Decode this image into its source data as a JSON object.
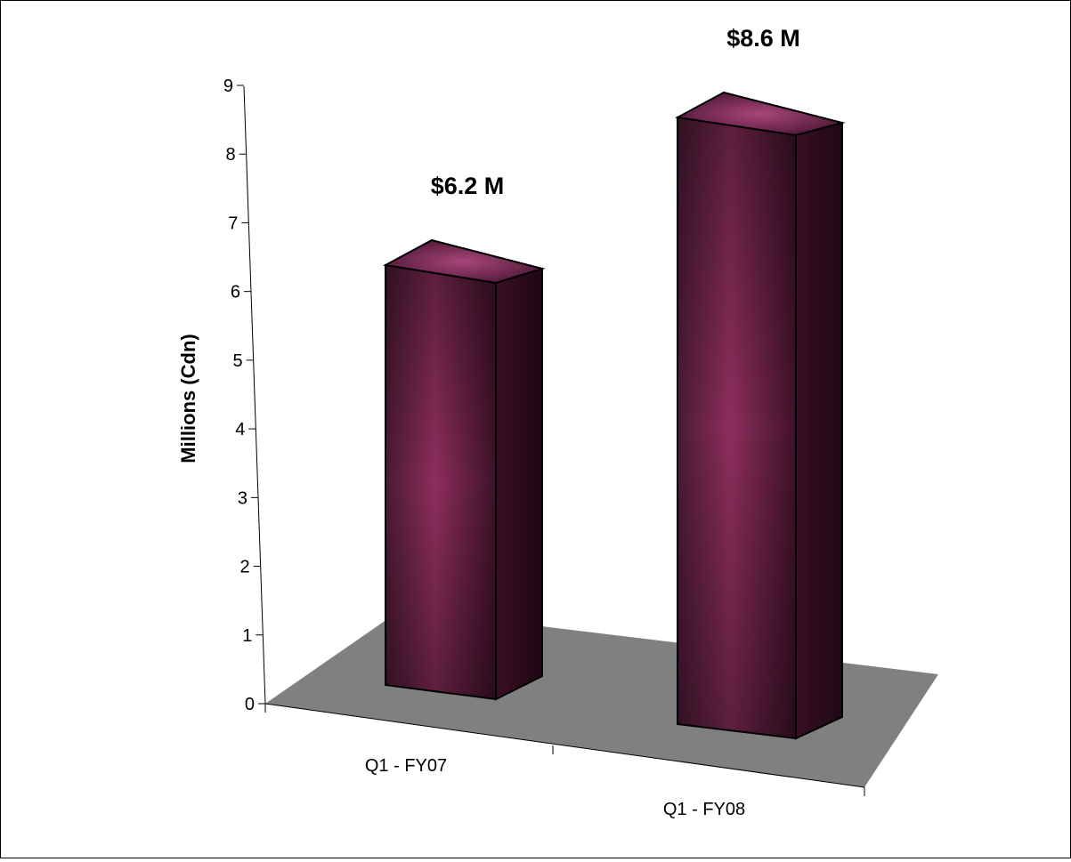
{
  "chart_data": {
    "type": "bar",
    "categories": [
      "Q1 - FY07",
      "Q1 - FY08"
    ],
    "values": [
      6.2,
      8.6
    ],
    "data_labels": [
      "$6.2 M",
      "$8.6 M"
    ],
    "ylabel": "Millions (Cdn)",
    "ylim": [
      0,
      9
    ],
    "yticks": [
      0,
      1,
      2,
      3,
      4,
      5,
      6,
      7,
      8,
      9
    ],
    "grid": false,
    "style": "3d-column",
    "bar_color": "#8a2c5a",
    "floor_color": "#808080"
  }
}
